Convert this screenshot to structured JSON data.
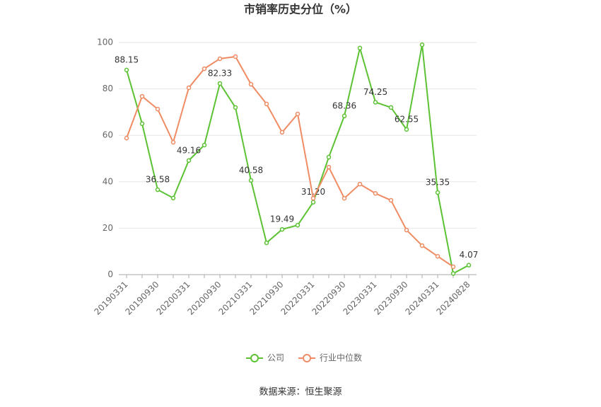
{
  "chart_data": {
    "type": "line",
    "title": "市销率历史分位（%）",
    "categories": [
      "20190331",
      null,
      "20190930",
      null,
      "20200331",
      null,
      "20200930",
      null,
      "20210331",
      null,
      "20210930",
      null,
      "20220331",
      null,
      "20220930",
      null,
      "20230331",
      null,
      "20230930",
      null,
      "20240331",
      null,
      "20240828"
    ],
    "series": [
      {
        "name": "公司",
        "color": "#5cc234",
        "values": [
          88.15,
          65,
          36.58,
          33,
          49.16,
          55.8,
          82.33,
          72,
          40.58,
          13.7,
          19.49,
          21.3,
          31.2,
          50.6,
          68.36,
          97.6,
          74.25,
          72,
          62.55,
          99,
          35.35,
          0.5,
          4.07
        ],
        "value_labels": [
          "88.15",
          null,
          "36.58",
          null,
          "49.16",
          null,
          "82.33",
          null,
          "40.58",
          null,
          "19.49",
          null,
          "31.20",
          null,
          "68.36",
          null,
          "74.25",
          null,
          "62.55",
          null,
          "35.35",
          null,
          "4.07"
        ]
      },
      {
        "name": "行业中位数",
        "color": "#f08c64",
        "values": [
          58.8,
          76.8,
          71.3,
          57,
          80.5,
          88.7,
          93,
          93.9,
          82,
          73.5,
          61.3,
          69.2,
          32.9,
          46.3,
          32.9,
          39,
          35,
          32,
          19.2,
          12.5,
          7.9,
          3.4,
          null
        ]
      }
    ],
    "ylim": [
      0,
      100
    ],
    "yticks": [
      0,
      20,
      40,
      60,
      80,
      100
    ],
    "grid": true,
    "legend": "bottom",
    "source": "数据来源：恒生聚源"
  }
}
